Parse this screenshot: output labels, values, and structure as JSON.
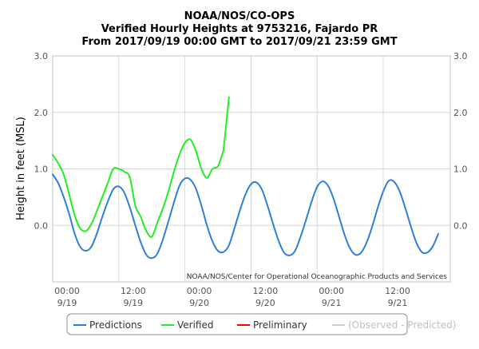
{
  "chart_data": {
    "type": "line",
    "title_lines": [
      "NOAA/NOS/CO-OPS",
      "Verified Hourly Heights at 9753216, Fajardo PR",
      "From 2017/09/19 00:00 GMT to 2017/09/21 23:59 GMT"
    ],
    "ylabel": "Height in feet (MSL)",
    "ylim": [
      -1.0,
      3.0
    ],
    "y_ticks": [
      3.0,
      2.0,
      1.0,
      0.0
    ],
    "y_tick_labels": [
      "3.0",
      "2.0",
      "1.0",
      "0.0"
    ],
    "xlim_hours": [
      0,
      71
    ],
    "x_ticks": [
      {
        "hour": 0,
        "time": "00:00",
        "date": "9/19"
      },
      {
        "hour": 12,
        "time": "12:00",
        "date": "9/19"
      },
      {
        "hour": 24,
        "time": "00:00",
        "date": "9/20"
      },
      {
        "hour": 36,
        "time": "12:00",
        "date": "9/20"
      },
      {
        "hour": 48,
        "time": "00:00",
        "date": "9/21"
      },
      {
        "hour": 60,
        "time": "12:00",
        "date": "9/21"
      }
    ],
    "credit": "NOAA/NOS/Center for Operational Oceanographic Products and Services",
    "grid": true,
    "legend_position": "bottom",
    "series": [
      {
        "name": "Predictions",
        "color": "#2f7ed8",
        "x": [
          0,
          1,
          2,
          3,
          4,
          5,
          6,
          7,
          8,
          9,
          10,
          11,
          12,
          13,
          14,
          15,
          16,
          17,
          18,
          19,
          20,
          21,
          22,
          23,
          24,
          25,
          26,
          27,
          28,
          29,
          30,
          31,
          32,
          33,
          34,
          35,
          36,
          37,
          38,
          39,
          40,
          41,
          42,
          43,
          44,
          45,
          46,
          47,
          48,
          49,
          50,
          51,
          52,
          53,
          54,
          55,
          56,
          57,
          58,
          59,
          60,
          61,
          62,
          63,
          64,
          65,
          66,
          67,
          68,
          69,
          70
        ],
        "y": [
          0.9,
          0.75,
          0.5,
          0.2,
          -0.15,
          -0.38,
          -0.45,
          -0.38,
          -0.15,
          0.15,
          0.42,
          0.64,
          0.69,
          0.58,
          0.32,
          0.0,
          -0.3,
          -0.52,
          -0.58,
          -0.5,
          -0.25,
          0.07,
          0.4,
          0.7,
          0.83,
          0.81,
          0.65,
          0.35,
          0.0,
          -0.28,
          -0.45,
          -0.47,
          -0.35,
          -0.05,
          0.27,
          0.55,
          0.73,
          0.76,
          0.63,
          0.35,
          0.03,
          -0.27,
          -0.48,
          -0.53,
          -0.45,
          -0.2,
          0.1,
          0.42,
          0.68,
          0.78,
          0.7,
          0.47,
          0.15,
          -0.17,
          -0.41,
          -0.52,
          -0.48,
          -0.3,
          -0.02,
          0.31,
          0.6,
          0.79,
          0.77,
          0.6,
          0.31,
          -0.01,
          -0.3,
          -0.47,
          -0.48,
          -0.37,
          -0.15
        ]
      },
      {
        "name": "Verified",
        "color": "#22ee22",
        "x": [
          0,
          1,
          2,
          3,
          4,
          5,
          6,
          7,
          8,
          9,
          10,
          11,
          12,
          13,
          14,
          15,
          16,
          17,
          18,
          19,
          20,
          21,
          22,
          23,
          24,
          25,
          26,
          27,
          28,
          29,
          30,
          31
        ],
        "y": [
          1.25,
          1.1,
          0.9,
          0.55,
          0.18,
          -0.05,
          -0.1,
          0.02,
          0.25,
          0.5,
          0.75,
          1.0,
          1.0,
          0.95,
          0.85,
          0.35,
          0.15,
          -0.1,
          -0.2,
          0.05,
          0.3,
          0.6,
          0.95,
          1.25,
          1.46,
          1.52,
          1.32,
          1.0,
          0.84,
          1.0,
          1.05,
          1.32
        ]
      },
      {
        "name": "Verified",
        "color": "#22ee22",
        "x": [
          31,
          32
        ],
        "y": [
          1.32,
          2.27
        ]
      }
    ],
    "legend_items": [
      {
        "label": "Predictions",
        "color": "#2f7ed8"
      },
      {
        "label": "Verified",
        "color": "#22ee22"
      },
      {
        "label": "Preliminary",
        "color": "#ff0000"
      },
      {
        "label": "(Observed - Predicted)",
        "color": "#cccccc"
      }
    ]
  }
}
